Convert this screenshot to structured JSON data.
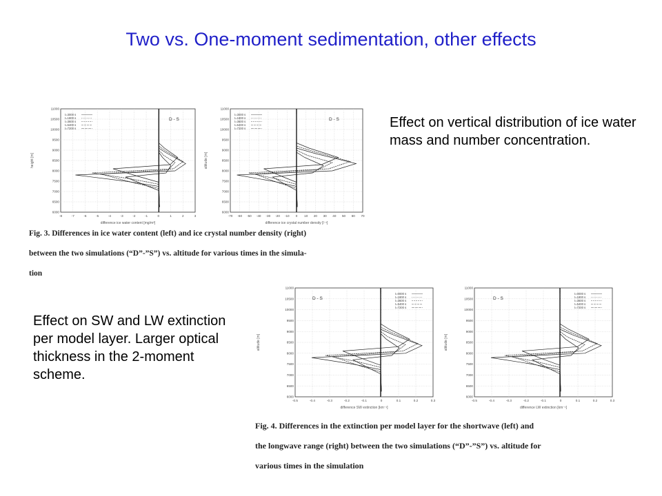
{
  "title": "Two vs. One-moment sedimentation, other effects",
  "description_top": "Effect on vertical distribution of ice water mass and number concentration.",
  "description_bottom": "Effect on SW and LW extinction per model layer. Larger optical thickness in the 2-moment scheme.",
  "fig3": {
    "caption_lines": [
      "Fig. 3. Differences in ice water content (left) and ice crystal number density (right)",
      "between the two simulations (“D”-”S”) vs. altitude for various times in the simula-",
      "tion"
    ],
    "panels": [
      {
        "tag": "D - S",
        "ylabel": "height [m]",
        "xlabel": "difference ice water content [mg/m³]",
        "yticks": [
          "11000",
          "10500",
          "10000",
          "9500",
          "9000",
          "8500",
          "8000",
          "7500",
          "7000",
          "6500",
          "6000"
        ],
        "xticks": [
          "-8",
          "-7",
          "-6",
          "-5",
          "-4",
          "-3",
          "-2",
          "-1",
          "0",
          "1",
          "2",
          "3"
        ],
        "legend": [
          "t=3000 s",
          "t=1800 s",
          "t=3600 s",
          "t=5400 s",
          "t=7200 s"
        ]
      },
      {
        "tag": "D - S",
        "ylabel": "altitude [m]",
        "xlabel": "difference ice crystal number density [l⁻¹]",
        "yticks": [
          "11000",
          "10500",
          "10000",
          "9500",
          "9000",
          "8500",
          "8000",
          "7500",
          "7000",
          "6500",
          "6000"
        ],
        "xticks": [
          "-70",
          "-60",
          "-50",
          "-40",
          "-30",
          "-20",
          "-10",
          "0",
          "10",
          "20",
          "30",
          "40",
          "50",
          "60",
          "70"
        ],
        "legend": [
          "t=3000 s",
          "t=1800 s",
          "t=3600 s",
          "t=5400 s",
          "t=7200 s"
        ]
      }
    ]
  },
  "fig4": {
    "caption_lines": [
      "Fig. 4. Differences in the extinction per model layer for the shortwave (left) and",
      "the longwave range (right) between the two simulations (“D”-”S”) vs. altitude for",
      "various times in the simulation"
    ],
    "panels": [
      {
        "tag": "D - S",
        "ylabel": "altitude [m]",
        "xlabel": "difference SW extinction [km⁻¹]",
        "yticks": [
          "11000",
          "10500",
          "10000",
          "9500",
          "9000",
          "8500",
          "8000",
          "7500",
          "7000",
          "6500",
          "6000"
        ],
        "xticks": [
          "-0.5",
          "-0.4",
          "-0.3",
          "-0.2",
          "-0.1",
          "0",
          "0.1",
          "0.2",
          "0.3"
        ],
        "legend": [
          "t=0000 s",
          "t=1800 s",
          "t=3600 s",
          "t=5400 s",
          "t=7200 s"
        ]
      },
      {
        "tag": "D - S",
        "ylabel": "altitude [m]",
        "xlabel": "difference LW extinction [km⁻¹]",
        "yticks": [
          "11000",
          "10500",
          "10000",
          "9500",
          "9000",
          "8500",
          "8000",
          "7500",
          "7000",
          "6500",
          "6000"
        ],
        "xticks": [
          "-0.5",
          "-0.4",
          "-0.3",
          "-0.2",
          "-0.1",
          "0",
          "0.1",
          "0.2",
          "0.3"
        ],
        "legend": [
          "t=0000 s",
          "t=1800 s",
          "t=3600 s",
          "t=5400 s",
          "t=7200 s"
        ]
      }
    ]
  }
}
